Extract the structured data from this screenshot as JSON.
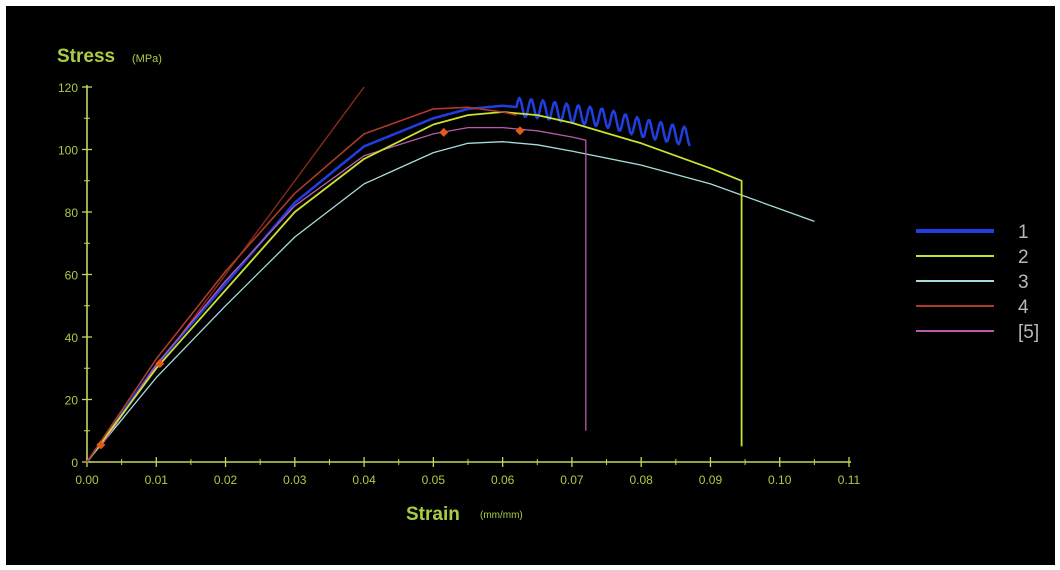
{
  "chart_data": {
    "type": "line",
    "y_title": "Stress",
    "y_unit": "(MPa)",
    "x_title": "Strain",
    "x_unit": "(mm/mm)",
    "xlim": [
      0,
      0.11
    ],
    "ylim": [
      0,
      120
    ],
    "x_ticks": [
      "0.00",
      "0.01",
      "0.02",
      "0.03",
      "0.04",
      "0.05",
      "0.06",
      "0.07",
      "0.08",
      "0.09",
      "0.10",
      "0.11"
    ],
    "y_ticks": [
      "0",
      "20",
      "40",
      "60",
      "80",
      "100",
      "120"
    ],
    "grid": false,
    "legend_position": "right",
    "colors": {
      "background": "#000000",
      "axis": "#c8d45a",
      "label": "#aacc44"
    },
    "series": [
      {
        "name": "1",
        "color": "#1f3fe0",
        "width": 2.5,
        "points": [
          [
            0,
            0
          ],
          [
            0.01,
            31
          ],
          [
            0.02,
            57
          ],
          [
            0.03,
            83
          ],
          [
            0.04,
            101
          ],
          [
            0.05,
            110
          ],
          [
            0.055,
            113
          ],
          [
            0.06,
            114
          ],
          [
            0.065,
            113
          ],
          [
            0.07,
            111.5
          ],
          [
            0.075,
            110
          ],
          [
            0.08,
            107
          ],
          [
            0.087,
            104
          ]
        ],
        "oscillation": {
          "from_x": 0.062,
          "amplitude": 3,
          "period": 0.0017
        }
      },
      {
        "name": "2",
        "color": "#cce030",
        "width": 1.8,
        "points": [
          [
            0,
            0
          ],
          [
            0.01,
            30
          ],
          [
            0.02,
            55
          ],
          [
            0.03,
            80
          ],
          [
            0.04,
            97
          ],
          [
            0.05,
            108
          ],
          [
            0.055,
            111
          ],
          [
            0.06,
            112
          ],
          [
            0.065,
            111
          ],
          [
            0.07,
            108.5
          ],
          [
            0.08,
            102
          ],
          [
            0.09,
            94
          ],
          [
            0.0945,
            90
          ],
          [
            0.0945,
            5
          ]
        ]
      },
      {
        "name": "3",
        "color": "#a8dada",
        "width": 1.3,
        "points": [
          [
            0,
            0
          ],
          [
            0.01,
            27
          ],
          [
            0.02,
            50
          ],
          [
            0.03,
            72
          ],
          [
            0.04,
            89
          ],
          [
            0.05,
            99
          ],
          [
            0.055,
            102
          ],
          [
            0.06,
            102.5
          ],
          [
            0.065,
            101.5
          ],
          [
            0.07,
            99.5
          ],
          [
            0.08,
            95
          ],
          [
            0.09,
            89
          ],
          [
            0.1,
            81
          ],
          [
            0.105,
            77
          ]
        ]
      },
      {
        "name": "4",
        "color": "#b03a28",
        "width": 1.6,
        "points": [
          [
            0,
            0
          ],
          [
            0.01,
            33
          ],
          [
            0.02,
            61
          ],
          [
            0.03,
            86
          ],
          [
            0.04,
            105
          ],
          [
            0.05,
            113
          ],
          [
            0.055,
            113.5
          ],
          [
            0.06,
            112
          ],
          [
            0.062,
            111
          ]
        ]
      },
      {
        "name": "[5]",
        "color": "#b85aa8",
        "width": 1.3,
        "points": [
          [
            0.002,
            5
          ],
          [
            0.01,
            31
          ],
          [
            0.02,
            58
          ],
          [
            0.03,
            82
          ],
          [
            0.04,
            98
          ],
          [
            0.05,
            105
          ],
          [
            0.055,
            107
          ],
          [
            0.06,
            107
          ],
          [
            0.065,
            106
          ],
          [
            0.07,
            104
          ],
          [
            0.072,
            103
          ],
          [
            0.072,
            10
          ]
        ]
      }
    ],
    "reference_line": {
      "color": "#8a2a1a",
      "points": [
        [
          0,
          0
        ],
        [
          0.04,
          120
        ]
      ]
    },
    "markers": {
      "color": "#e05a1a",
      "points": [
        [
          0.002,
          5.5
        ],
        [
          0.0105,
          31.5
        ],
        [
          0.0515,
          105.5
        ],
        [
          0.0625,
          106
        ]
      ]
    }
  }
}
